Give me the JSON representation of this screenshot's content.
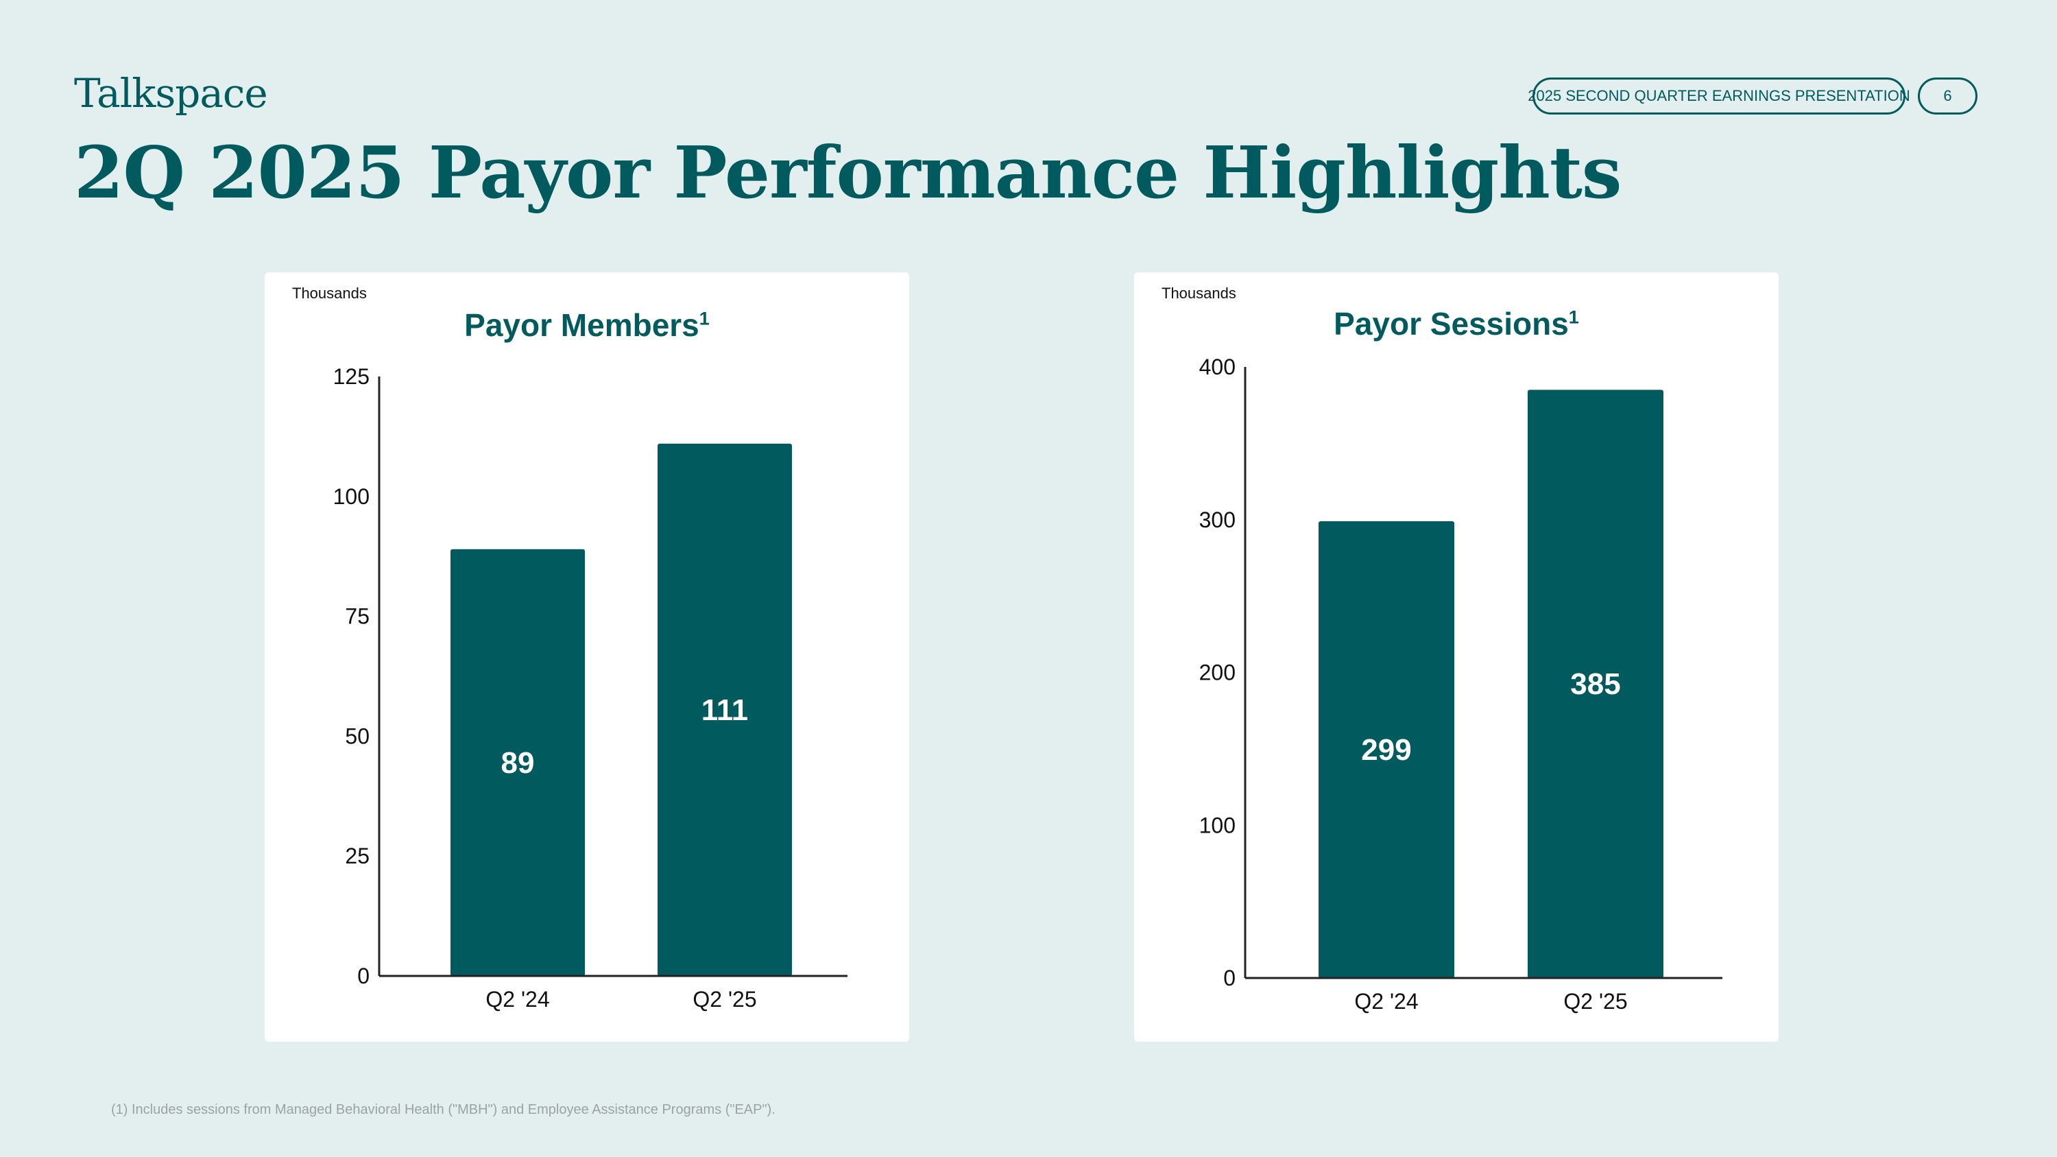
{
  "header": {
    "logo_text": "Talkspace",
    "page_title": "2Q 2025 Payor Performance Highlights",
    "presentation_label": "2025 SECOND QUARTER EARNINGS PRESENTATION",
    "page_number": "6"
  },
  "colors": {
    "background": "#e2efee",
    "brand": "#005a5e",
    "bar": "#005a5e",
    "card": "#ffffff"
  },
  "chart_data": [
    {
      "type": "bar",
      "title": "Payor Members",
      "title_superscript": "1",
      "units_label": "Thousands",
      "categories": [
        "Q2 '24",
        "Q2 '25"
      ],
      "values": [
        89,
        111
      ],
      "data_labels": [
        "89",
        "111"
      ],
      "ylim": [
        0,
        125
      ],
      "yticks": [
        0,
        25,
        50,
        75,
        100,
        125
      ],
      "xlabel": "",
      "ylabel": "",
      "grid": false
    },
    {
      "type": "bar",
      "title": "Payor Sessions",
      "title_superscript": "1",
      "units_label": "Thousands",
      "categories": [
        "Q2 '24",
        "Q2 '25"
      ],
      "values": [
        299,
        385
      ],
      "data_labels": [
        "299",
        "385"
      ],
      "ylim": [
        0,
        400
      ],
      "yticks": [
        0,
        100,
        200,
        300,
        400
      ],
      "xlabel": "",
      "ylabel": "",
      "grid": false
    }
  ],
  "footnote": "(1) Includes sessions from Managed Behavioral Health (\"MBH\") and Employee Assistance Programs (\"EAP\")."
}
